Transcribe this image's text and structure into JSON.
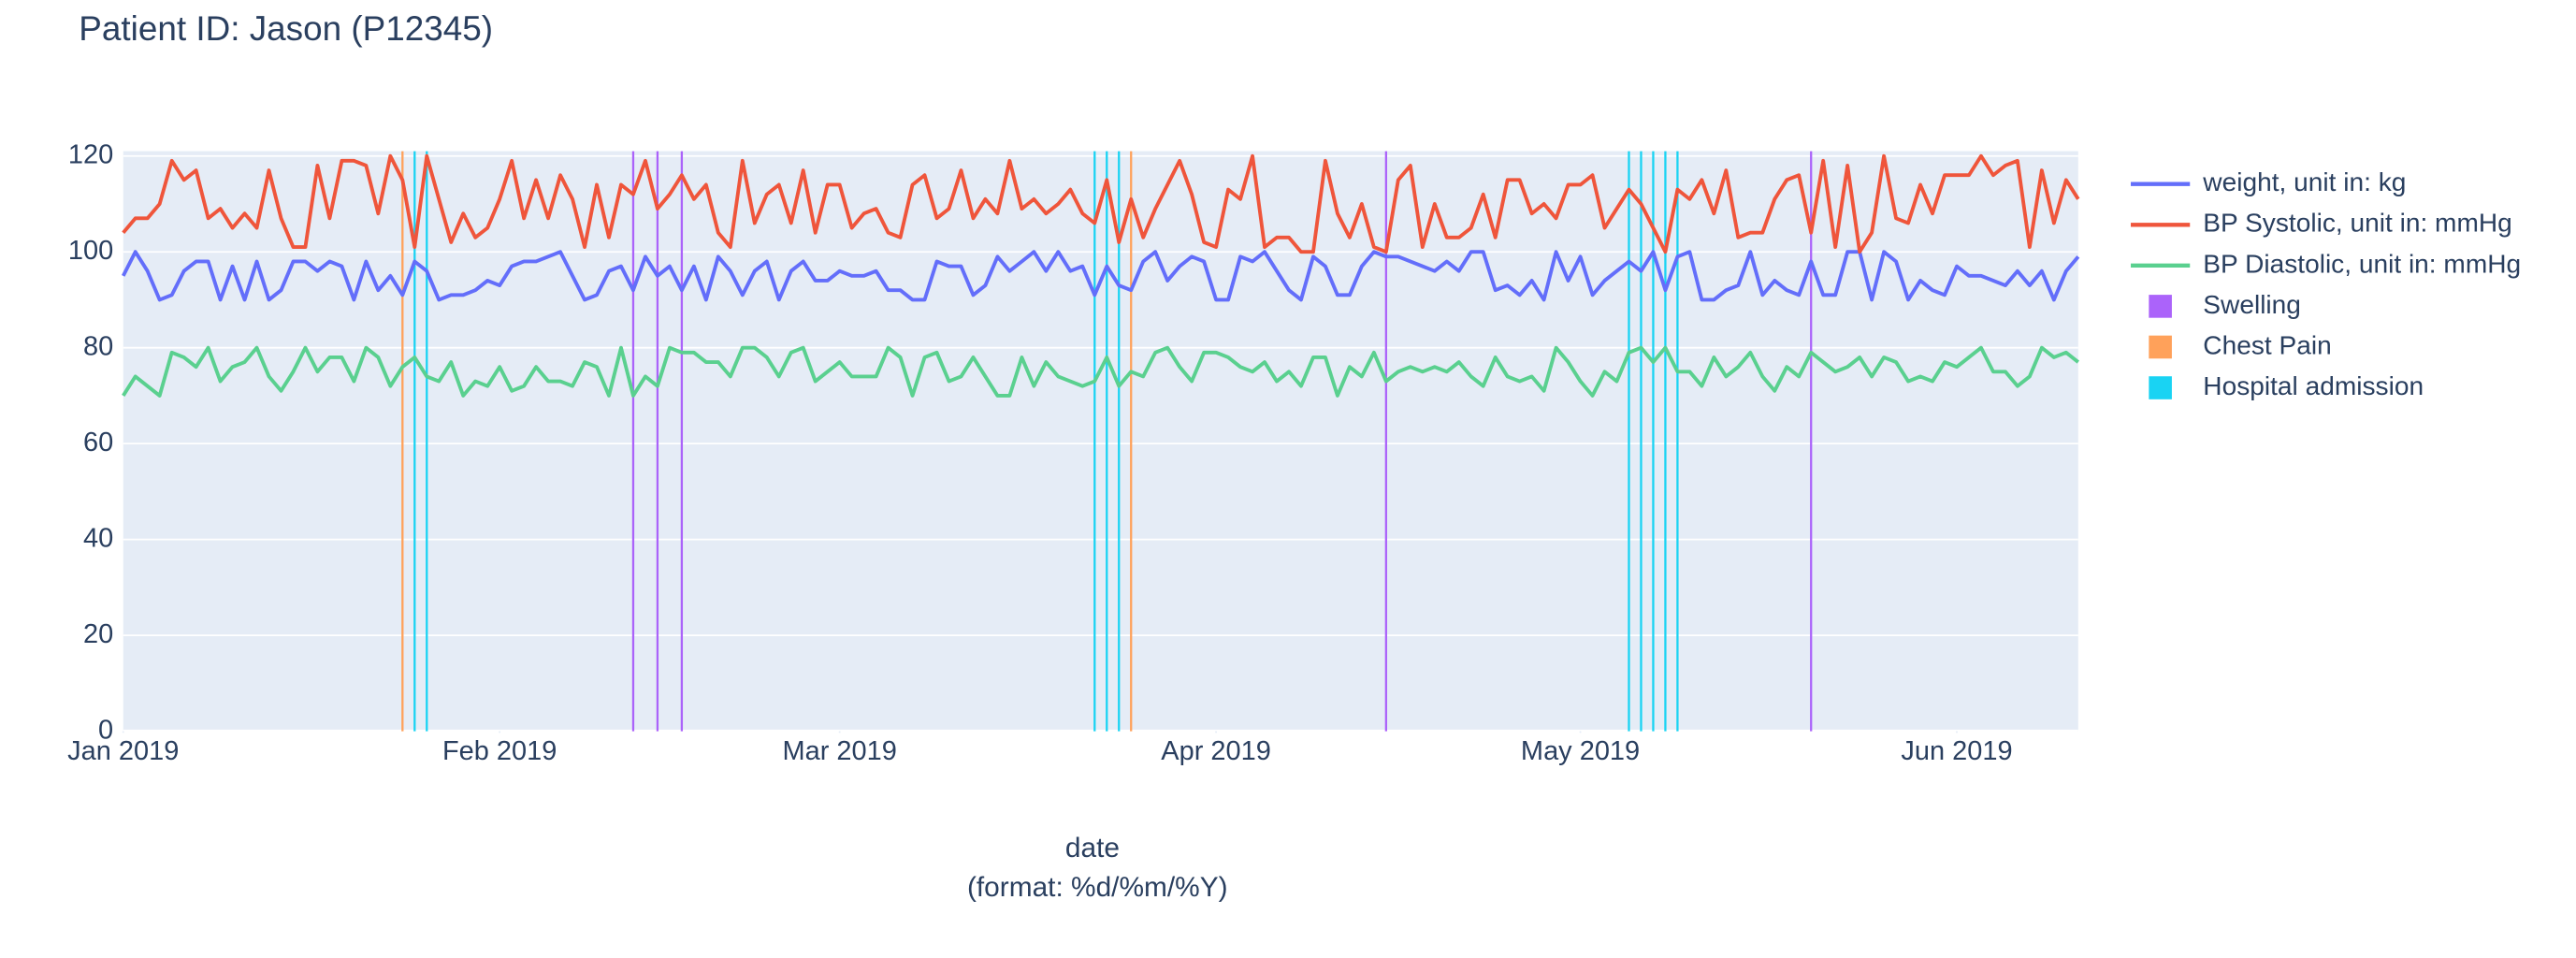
{
  "chart_data": {
    "type": "line",
    "title": "Patient ID: Jason (P12345)",
    "xlabel": [
      "date",
      "(format: %d/%m/%Y)"
    ],
    "x": [
      "2019-01-01",
      "2019-01-02",
      "2019-01-03",
      "2019-01-04",
      "2019-01-05",
      "2019-01-06",
      "2019-01-07",
      "2019-01-08",
      "2019-01-09",
      "2019-01-10",
      "2019-01-11",
      "2019-01-12",
      "2019-01-13",
      "2019-01-14",
      "2019-01-15",
      "2019-01-16",
      "2019-01-17",
      "2019-01-18",
      "2019-01-19",
      "2019-01-20",
      "2019-01-21",
      "2019-01-22",
      "2019-01-23",
      "2019-01-24",
      "2019-01-25",
      "2019-01-26",
      "2019-01-27",
      "2019-01-28",
      "2019-01-29",
      "2019-01-30",
      "2019-01-31",
      "2019-02-01",
      "2019-02-02",
      "2019-02-03",
      "2019-02-04",
      "2019-02-05",
      "2019-02-06",
      "2019-02-07",
      "2019-02-08",
      "2019-02-09",
      "2019-02-10",
      "2019-02-11",
      "2019-02-12",
      "2019-02-13",
      "2019-02-14",
      "2019-02-15",
      "2019-02-16",
      "2019-02-17",
      "2019-02-18",
      "2019-02-19",
      "2019-02-20",
      "2019-02-21",
      "2019-02-22",
      "2019-02-23",
      "2019-02-24",
      "2019-02-25",
      "2019-02-26",
      "2019-02-27",
      "2019-02-28",
      "2019-03-01",
      "2019-03-02",
      "2019-03-03",
      "2019-03-04",
      "2019-03-05",
      "2019-03-06",
      "2019-03-07",
      "2019-03-08",
      "2019-03-09",
      "2019-03-10",
      "2019-03-11",
      "2019-03-12",
      "2019-03-13",
      "2019-03-14",
      "2019-03-15",
      "2019-03-16",
      "2019-03-17",
      "2019-03-18",
      "2019-03-19",
      "2019-03-20",
      "2019-03-21",
      "2019-03-22",
      "2019-03-23",
      "2019-03-24",
      "2019-03-25",
      "2019-03-26",
      "2019-03-27",
      "2019-03-28",
      "2019-03-29",
      "2019-03-30",
      "2019-03-31",
      "2019-04-01",
      "2019-04-02",
      "2019-04-03",
      "2019-04-04",
      "2019-04-05",
      "2019-04-06",
      "2019-04-07",
      "2019-04-08",
      "2019-04-09",
      "2019-04-10",
      "2019-04-11",
      "2019-04-12",
      "2019-04-13",
      "2019-04-14",
      "2019-04-15",
      "2019-04-16",
      "2019-04-17",
      "2019-04-18",
      "2019-04-19",
      "2019-04-20",
      "2019-04-21",
      "2019-04-22",
      "2019-04-23",
      "2019-04-24",
      "2019-04-25",
      "2019-04-26",
      "2019-04-27",
      "2019-04-28",
      "2019-04-29",
      "2019-04-30",
      "2019-05-01",
      "2019-05-02",
      "2019-05-03",
      "2019-05-04",
      "2019-05-05",
      "2019-05-06",
      "2019-05-07",
      "2019-05-08",
      "2019-05-09",
      "2019-05-10",
      "2019-05-11",
      "2019-05-12",
      "2019-05-13",
      "2019-05-14",
      "2019-05-15",
      "2019-05-16",
      "2019-05-17",
      "2019-05-18",
      "2019-05-19",
      "2019-05-20",
      "2019-05-21",
      "2019-05-22",
      "2019-05-23",
      "2019-05-24",
      "2019-05-25",
      "2019-05-26",
      "2019-05-27",
      "2019-05-28",
      "2019-05-29",
      "2019-05-30",
      "2019-05-31",
      "2019-06-01",
      "2019-06-02",
      "2019-06-03",
      "2019-06-04",
      "2019-06-05",
      "2019-06-06",
      "2019-06-07",
      "2019-06-08",
      "2019-06-09",
      "2019-06-10",
      "2019-06-11"
    ],
    "series": [
      {
        "name": "weight, unit in: kg",
        "color": "#636efa",
        "values": [
          95,
          100,
          96,
          90,
          91,
          96,
          98,
          98,
          90,
          97,
          90,
          98,
          90,
          92,
          98,
          98,
          96,
          98,
          97,
          90,
          98,
          92,
          95,
          91,
          98,
          96,
          90,
          91,
          91,
          92,
          94,
          93,
          97,
          98,
          98,
          99,
          100,
          95,
          90,
          91,
          96,
          97,
          92,
          99,
          95,
          97,
          92,
          97,
          90,
          99,
          96,
          91,
          96,
          98,
          90,
          96,
          98,
          94,
          94,
          96,
          95,
          95,
          96,
          92,
          92,
          90,
          90,
          98,
          97,
          97,
          91,
          93,
          99,
          96,
          98,
          100,
          96,
          100,
          96,
          97,
          91,
          97,
          93,
          92,
          98,
          100,
          94,
          97,
          99,
          98,
          90,
          90,
          99,
          98,
          100,
          96,
          92,
          90,
          99,
          97,
          91,
          91,
          97,
          100,
          99,
          99,
          98,
          97,
          96,
          98,
          96,
          100,
          100,
          92,
          93,
          91,
          94,
          90,
          100,
          94,
          99,
          91,
          94,
          96,
          98,
          96,
          100,
          92,
          99,
          100,
          90,
          90,
          92,
          93,
          100,
          91,
          94,
          92,
          91,
          98,
          91,
          91,
          100,
          100,
          90,
          100,
          98,
          90,
          94,
          92,
          91,
          97,
          95,
          95,
          94,
          93,
          96,
          93,
          96,
          90,
          96,
          99
        ]
      },
      {
        "name": "BP Systolic, unit in: mmHg",
        "color": "#ef553b",
        "values": [
          104,
          107,
          107,
          110,
          119,
          115,
          117,
          107,
          109,
          105,
          108,
          105,
          117,
          107,
          101,
          101,
          118,
          107,
          119,
          119,
          118,
          108,
          120,
          115,
          101,
          120,
          111,
          102,
          108,
          103,
          105,
          111,
          119,
          107,
          115,
          107,
          116,
          111,
          101,
          114,
          103,
          114,
          112,
          119,
          109,
          112,
          116,
          111,
          114,
          104,
          101,
          119,
          106,
          112,
          114,
          106,
          117,
          104,
          114,
          114,
          105,
          108,
          109,
          104,
          103,
          114,
          116,
          107,
          109,
          117,
          107,
          111,
          108,
          119,
          109,
          111,
          108,
          110,
          113,
          108,
          106,
          115,
          102,
          111,
          103,
          109,
          114,
          119,
          112,
          102,
          101,
          113,
          111,
          120,
          101,
          103,
          103,
          100,
          100,
          119,
          108,
          103,
          110,
          101,
          100,
          115,
          118,
          101,
          110,
          103,
          103,
          105,
          112,
          103,
          115,
          115,
          108,
          110,
          107,
          114,
          114,
          116,
          105,
          109,
          113,
          110,
          105,
          100,
          113,
          111,
          115,
          108,
          117,
          103,
          104,
          104,
          111,
          115,
          116,
          104,
          119,
          101,
          118,
          100,
          104,
          120,
          107,
          106,
          114,
          108,
          116,
          116,
          116,
          120,
          116,
          118,
          119,
          101,
          117,
          106,
          115,
          111
        ]
      },
      {
        "name": "BP Diastolic, unit in: mmHg",
        "color": "#5ad08f",
        "values": [
          70,
          74,
          72,
          70,
          79,
          78,
          76,
          80,
          73,
          76,
          77,
          80,
          74,
          71,
          75,
          80,
          75,
          78,
          78,
          73,
          80,
          78,
          72,
          76,
          78,
          74,
          73,
          77,
          70,
          73,
          72,
          76,
          71,
          72,
          76,
          73,
          73,
          72,
          77,
          76,
          70,
          80,
          70,
          74,
          72,
          80,
          79,
          79,
          77,
          77,
          74,
          80,
          80,
          78,
          74,
          79,
          80,
          73,
          75,
          77,
          74,
          74,
          74,
          80,
          78,
          70,
          78,
          79,
          73,
          74,
          78,
          74,
          70,
          70,
          78,
          72,
          77,
          74,
          73,
          72,
          73,
          78,
          72,
          75,
          74,
          79,
          80,
          76,
          73,
          79,
          79,
          78,
          76,
          75,
          77,
          73,
          75,
          72,
          78,
          78,
          70,
          76,
          74,
          79,
          73,
          75,
          76,
          75,
          76,
          75,
          77,
          74,
          72,
          78,
          74,
          73,
          74,
          71,
          80,
          77,
          73,
          70,
          75,
          73,
          79,
          80,
          77,
          80,
          75,
          75,
          72,
          78,
          74,
          76,
          79,
          74,
          71,
          76,
          74,
          79,
          77,
          75,
          76,
          78,
          74,
          78,
          77,
          73,
          74,
          73,
          77,
          76,
          78,
          80,
          75,
          75,
          72,
          74,
          80,
          78,
          79,
          77
        ]
      }
    ],
    "events": [
      {
        "name": "Swelling",
        "color": "#ab63fa",
        "dates": [
          "2019-02-12",
          "2019-02-14",
          "2019-02-16",
          "2019-04-15",
          "2019-05-20"
        ]
      },
      {
        "name": "Chest Pain",
        "color": "#ffa15a",
        "dates": [
          "2019-01-24",
          "2019-03-25"
        ]
      },
      {
        "name": "Hospital admission",
        "color": "#19d3f3",
        "dates": [
          "2019-01-25",
          "2019-01-26",
          "2019-03-22",
          "2019-03-23",
          "2019-03-24",
          "2019-05-05",
          "2019-05-06",
          "2019-05-07",
          "2019-05-08",
          "2019-05-09"
        ]
      }
    ],
    "xlim": [
      "2019-01-01",
      "2019-06-11"
    ],
    "xticks": [
      {
        "value": "2019-01-01",
        "label": "Jan 2019"
      },
      {
        "value": "2019-02-01",
        "label": "Feb 2019"
      },
      {
        "value": "2019-03-01",
        "label": "Mar 2019"
      },
      {
        "value": "2019-04-01",
        "label": "Apr 2019"
      },
      {
        "value": "2019-05-01",
        "label": "May 2019"
      },
      {
        "value": "2019-06-01",
        "label": "Jun 2019"
      }
    ],
    "ylim": [
      0,
      121
    ],
    "yticks": [
      0,
      20,
      40,
      60,
      80,
      100,
      120
    ],
    "grid": true,
    "legend": "right"
  }
}
